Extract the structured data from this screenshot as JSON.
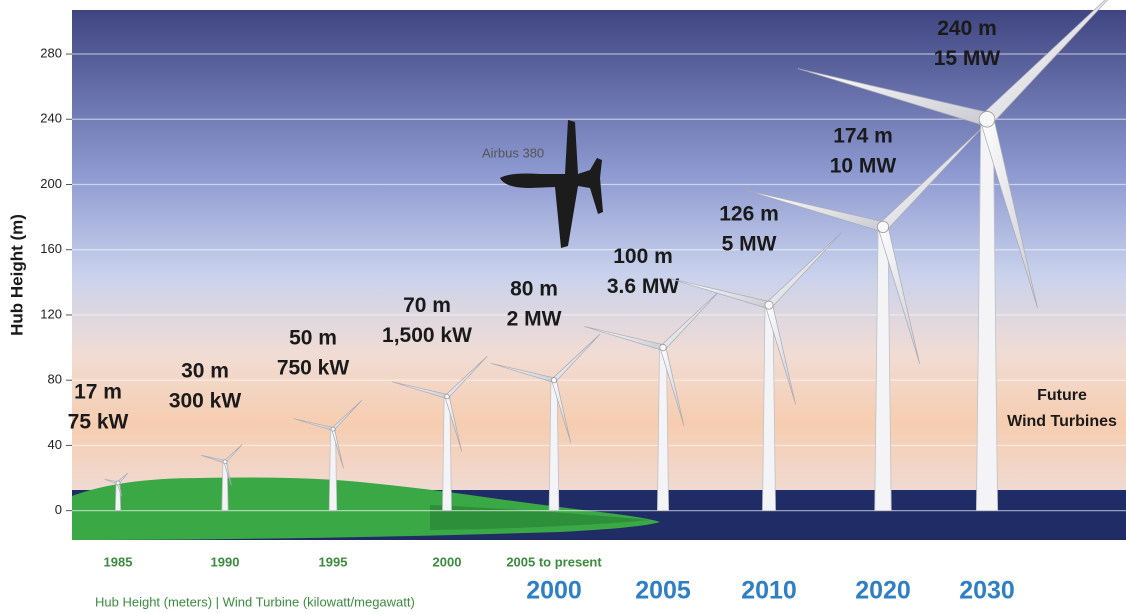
{
  "chart_data": {
    "type": "turbine",
    "y_label": "Hub Height (m)",
    "ylim": [
      -18,
      307
    ],
    "yticks": [
      0,
      40,
      80,
      120,
      160,
      200,
      240,
      280
    ],
    "grid": true,
    "values": [
      17,
      30,
      50,
      70,
      80,
      100,
      126,
      174,
      240
    ],
    "value_labels": [
      "17 m",
      "30 m",
      "50 m",
      "70 m",
      "80 m",
      "100 m",
      "126 m",
      "174 m",
      "240 m"
    ],
    "power_labels": [
      "75 kW",
      "300 kW",
      "750 kW",
      "1,500 kW",
      "2 MW",
      "3.6 MW",
      "5 MW",
      "10 MW",
      "15 MW"
    ],
    "early_years": [
      "1985",
      "1990",
      "1995",
      "2000",
      "2005 to present"
    ],
    "later_years": [
      "2000",
      "2005",
      "2010",
      "2020",
      "2030"
    ],
    "annotations": [
      "Airbus 380",
      "Future",
      "Wind Turbines"
    ],
    "footnote": "Hub Height (meters) | Wind Turbine (kilowatt/megawatt)"
  }
}
